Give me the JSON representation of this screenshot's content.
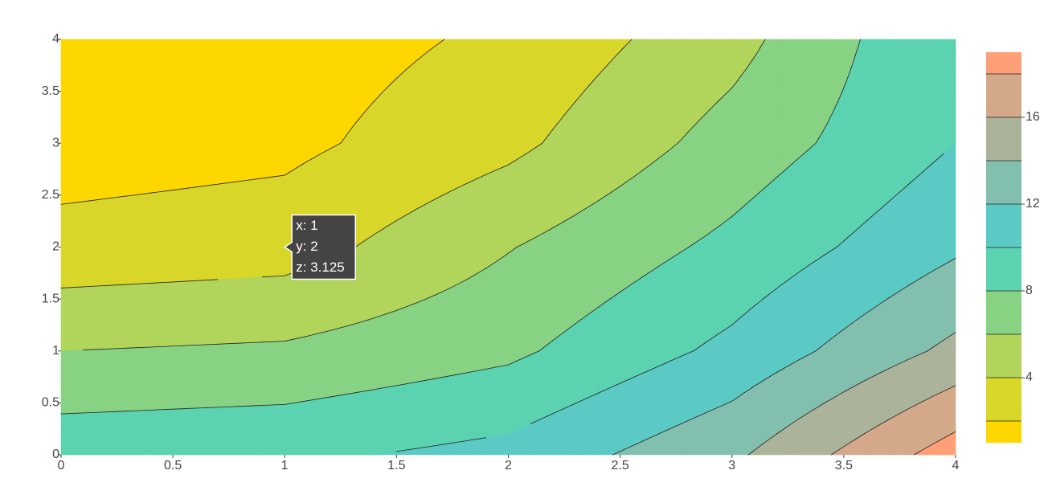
{
  "chart_data": {
    "type": "contour",
    "x": [
      0,
      1,
      2,
      3,
      4
    ],
    "y": [
      0,
      1,
      2,
      3,
      4
    ],
    "z": [
      [
        9.3,
        9.6,
        10.6,
        13.6,
        19
      ],
      [
        6,
        6.3,
        7.6,
        10.5,
        14.5
      ],
      [
        2.7,
        3.125,
        5.9,
        8.5,
        11.7
      ],
      [
        1,
        1.5,
        3.5,
        6.8,
        10
      ],
      [
        0.5,
        1,
        2.4,
        5.3,
        10
      ]
    ],
    "levels": [
      2,
      4,
      6,
      8,
      10,
      12,
      14,
      16,
      18
    ],
    "colors": [
      "#ffd700",
      "#d9d62a",
      "#b1d45b",
      "#87d383",
      "#5bd3b0",
      "#5ccac4",
      "#83bfae",
      "#abb39a",
      "#d4a98a",
      "#ff9f77"
    ],
    "xlim": [
      0,
      4
    ],
    "ylim": [
      0,
      4
    ],
    "xticks": [
      0,
      0.5,
      1,
      1.5,
      2,
      2.5,
      3,
      3.5,
      4
    ],
    "yticks": [
      0,
      0.5,
      1,
      1.5,
      2,
      2.5,
      3,
      3.5,
      4
    ],
    "colorbar_lim": [
      1,
      19
    ],
    "colorbar_ticks": [
      4,
      8,
      12,
      16
    ],
    "hover": {
      "x": 1,
      "y": 2,
      "labels": [
        "x: 1",
        "y: 2",
        "z: 3.125"
      ]
    }
  }
}
